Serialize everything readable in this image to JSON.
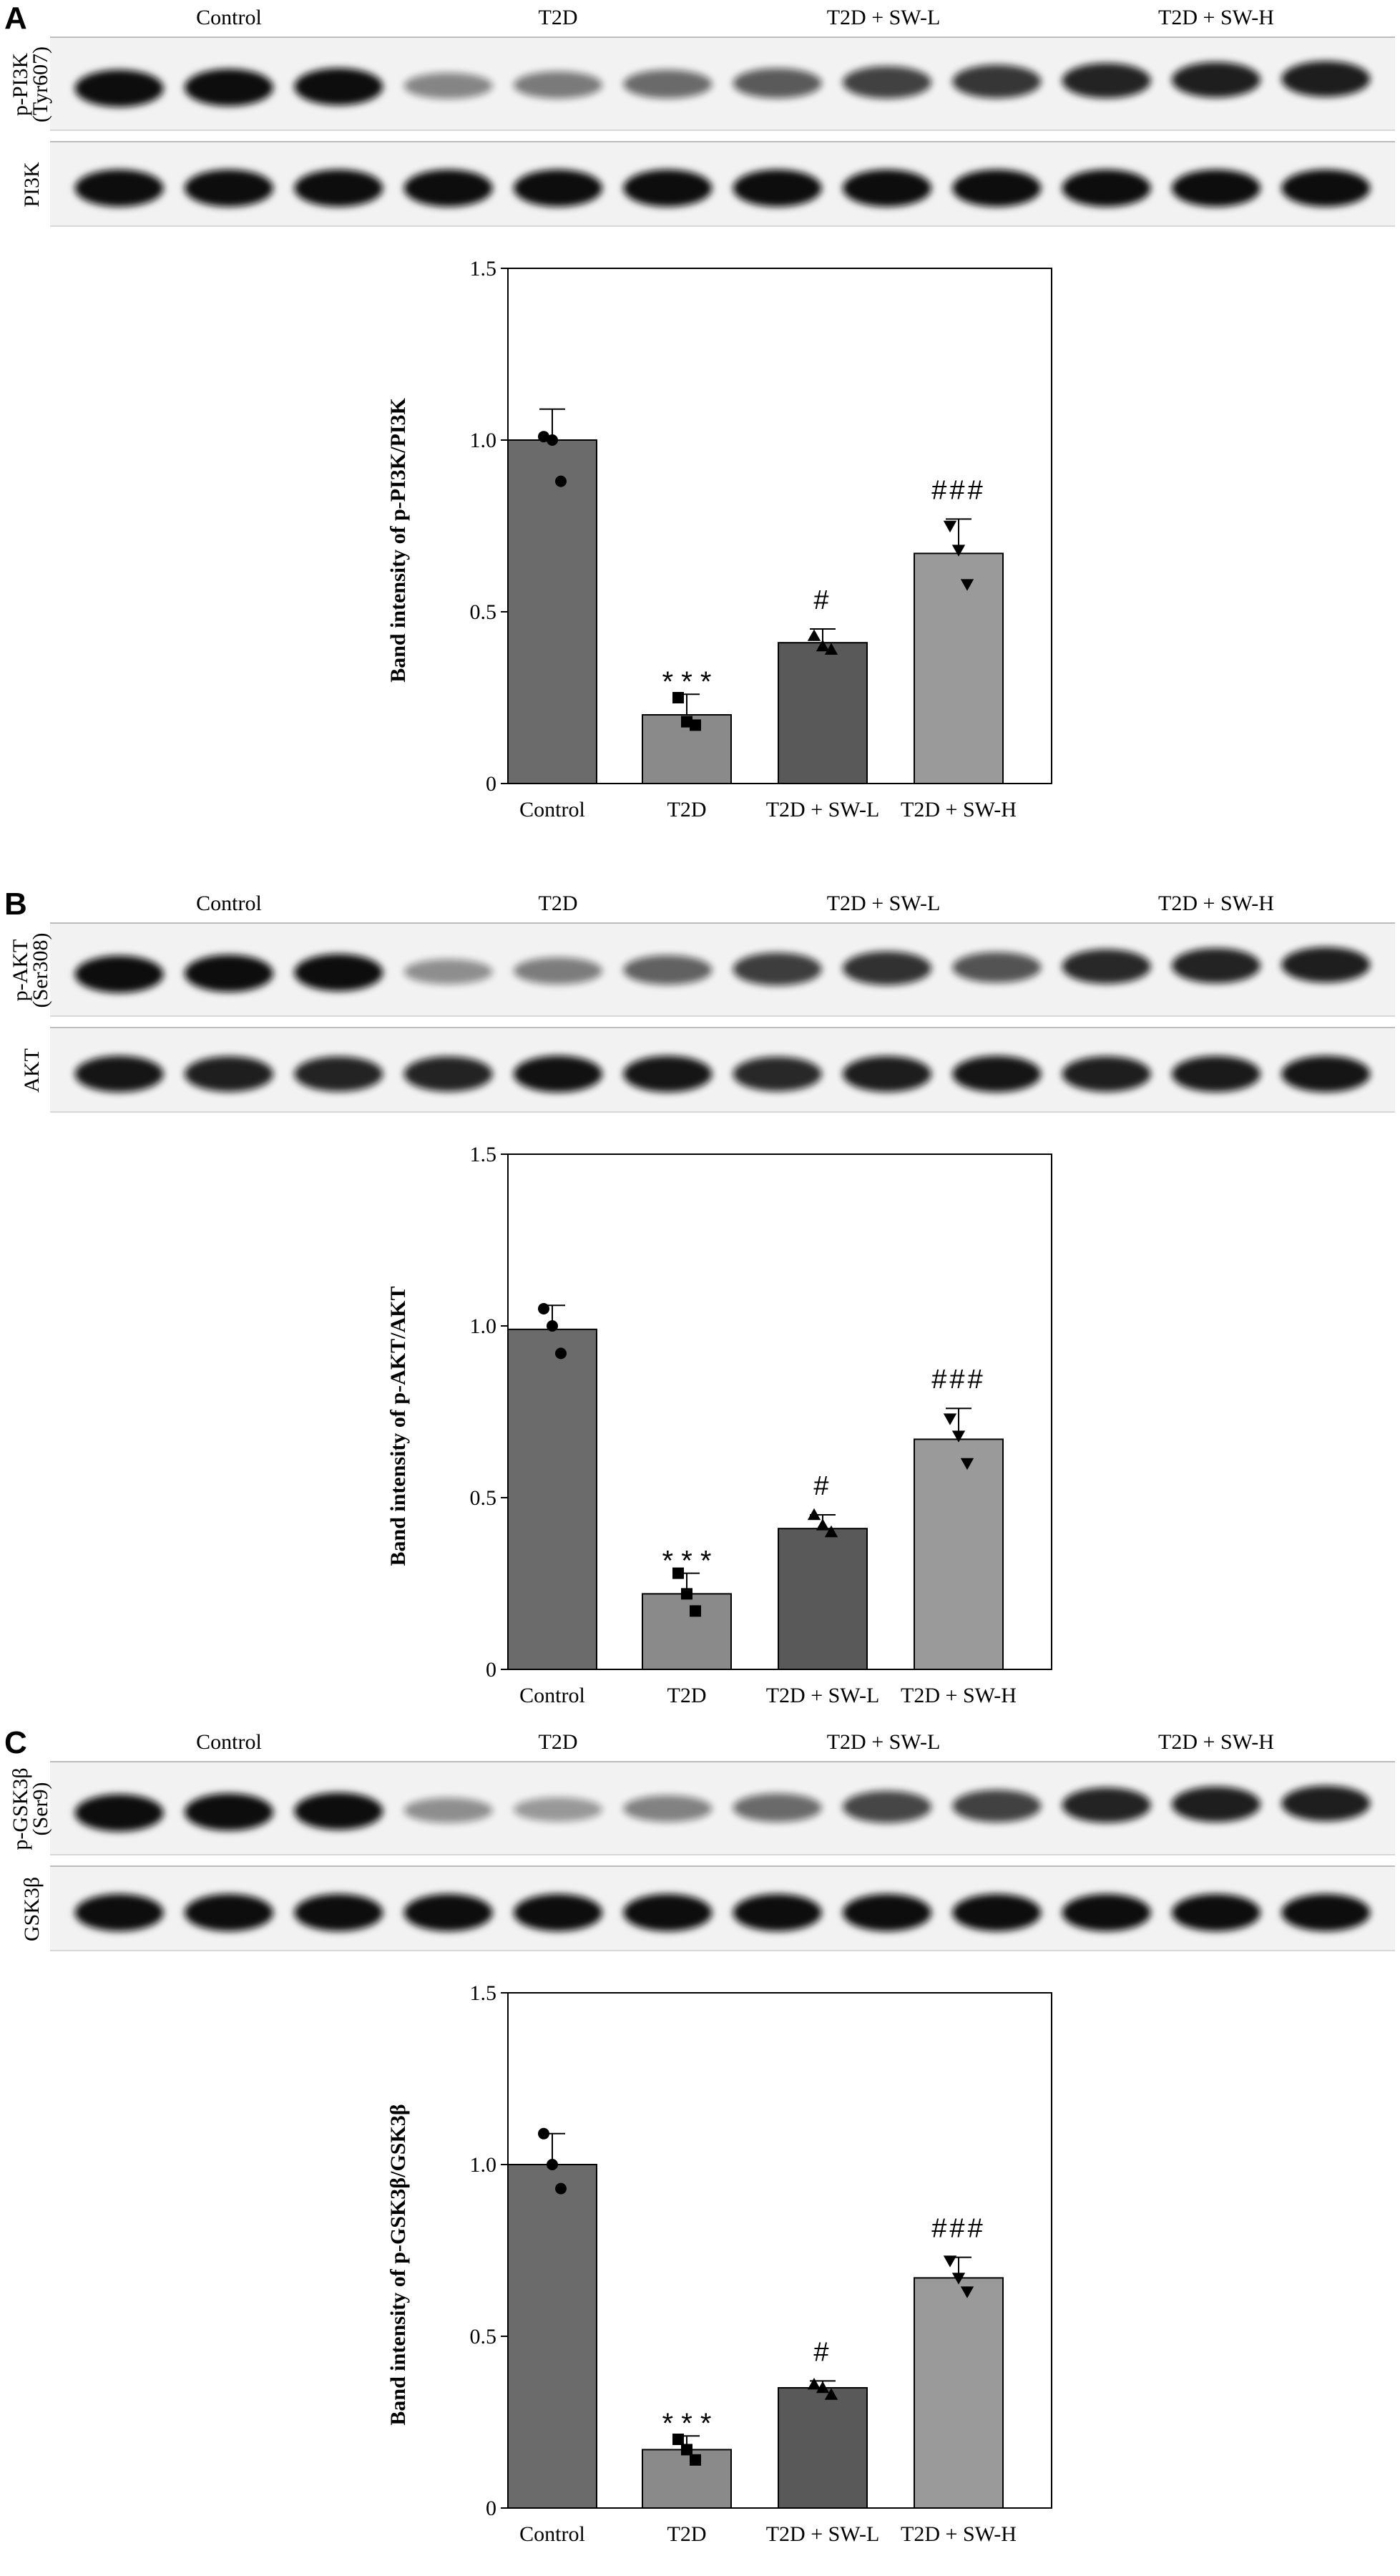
{
  "figure": {
    "groups": [
      "Control",
      "T2D",
      "T2D + SW-L",
      "T2D + SW-H"
    ],
    "bar_colors": [
      "#6b6b6b",
      "#8a8a8a",
      "#595959",
      "#9a9a9a"
    ],
    "band_color": "#111111",
    "blot_background": "#f2f2f2"
  },
  "panels": [
    {
      "letter": "A",
      "blot_labels": [
        [
          "p-PI3K",
          "(Tyr607)"
        ],
        [
          "PI3K"
        ]
      ],
      "phospho_intensity": [
        1.0,
        1.0,
        1.0,
        0.35,
        0.42,
        0.5,
        0.58,
        0.72,
        0.78,
        0.88,
        0.9,
        0.92
      ],
      "total_intensity": [
        1.0,
        1.0,
        1.0,
        1.0,
        1.0,
        1.0,
        1.0,
        1.0,
        1.0,
        1.0,
        1.0,
        1.0
      ]
    },
    {
      "letter": "B",
      "blot_labels": [
        [
          "p-AKT",
          "(Ser308)"
        ],
        [
          "AKT"
        ]
      ],
      "phospho_intensity": [
        1.0,
        1.0,
        1.0,
        0.3,
        0.4,
        0.55,
        0.75,
        0.8,
        0.62,
        0.85,
        0.88,
        0.9
      ],
      "total_intensity": [
        0.95,
        0.9,
        0.88,
        0.88,
        0.97,
        0.95,
        0.85,
        0.92,
        0.95,
        0.9,
        0.93,
        0.95
      ]
    },
    {
      "letter": "C",
      "blot_labels": [
        [
          "p-GSK3β",
          "(Ser9)"
        ],
        [
          "GSK3β"
        ]
      ],
      "phospho_intensity": [
        1.0,
        1.0,
        1.0,
        0.3,
        0.25,
        0.38,
        0.5,
        0.7,
        0.72,
        0.88,
        0.9,
        0.9
      ],
      "total_intensity": [
        1.0,
        1.0,
        1.0,
        1.0,
        1.0,
        1.0,
        1.0,
        1.0,
        1.0,
        1.0,
        1.0,
        1.0
      ]
    }
  ],
  "chart_data": [
    {
      "type": "bar",
      "panel": "A",
      "categories": [
        "Control",
        "T2D",
        "T2D + SW-L",
        "T2D + SW-H"
      ],
      "values": [
        1.0,
        0.2,
        0.41,
        0.67
      ],
      "errors": [
        0.09,
        0.06,
        0.04,
        0.1
      ],
      "points": [
        [
          1.01,
          1.0,
          0.88
        ],
        [
          0.25,
          0.18,
          0.17
        ],
        [
          0.43,
          0.4,
          0.39
        ],
        [
          0.75,
          0.68,
          0.58
        ]
      ],
      "markers": [
        "circle",
        "square",
        "triangle-up",
        "triangle-down"
      ],
      "annotations": [
        "",
        "*  *  *",
        "#",
        "###"
      ],
      "ylabel": "Band intensity of p-PI3K/PI3K",
      "xlabel": "",
      "ylim": [
        0,
        1.5
      ],
      "yticks": [
        "0",
        "0.5",
        "1.0",
        "1.5"
      ]
    },
    {
      "type": "bar",
      "panel": "B",
      "categories": [
        "Control",
        "T2D",
        "T2D + SW-L",
        "T2D + SW-H"
      ],
      "values": [
        0.99,
        0.22,
        0.41,
        0.67
      ],
      "errors": [
        0.07,
        0.06,
        0.04,
        0.09
      ],
      "points": [
        [
          1.05,
          1.0,
          0.92
        ],
        [
          0.28,
          0.22,
          0.17
        ],
        [
          0.45,
          0.42,
          0.4
        ],
        [
          0.73,
          0.68,
          0.6
        ]
      ],
      "markers": [
        "circle",
        "square",
        "triangle-up",
        "triangle-down"
      ],
      "annotations": [
        "",
        "*  *  *",
        "#",
        "###"
      ],
      "ylabel": "Band intensity of p-AKT/AKT",
      "xlabel": "",
      "ylim": [
        0,
        1.5
      ],
      "yticks": [
        "0",
        "0.5",
        "1.0",
        "1.5"
      ]
    },
    {
      "type": "bar",
      "panel": "C",
      "categories": [
        "Control",
        "T2D",
        "T2D + SW-L",
        "T2D + SW-H"
      ],
      "values": [
        1.0,
        0.17,
        0.35,
        0.67
      ],
      "errors": [
        0.09,
        0.04,
        0.02,
        0.06
      ],
      "points": [
        [
          1.09,
          1.0,
          0.93
        ],
        [
          0.2,
          0.17,
          0.14
        ],
        [
          0.36,
          0.35,
          0.33
        ],
        [
          0.72,
          0.67,
          0.63
        ]
      ],
      "markers": [
        "circle",
        "square",
        "triangle-up",
        "triangle-down"
      ],
      "annotations": [
        "",
        "*  *  *",
        "#",
        "###"
      ],
      "ylabel": "Band intensity of p-GSK3β/GSK3β",
      "xlabel": "",
      "ylim": [
        0,
        1.5
      ],
      "yticks": [
        "0",
        "0.5",
        "1.0",
        "1.5"
      ]
    }
  ]
}
